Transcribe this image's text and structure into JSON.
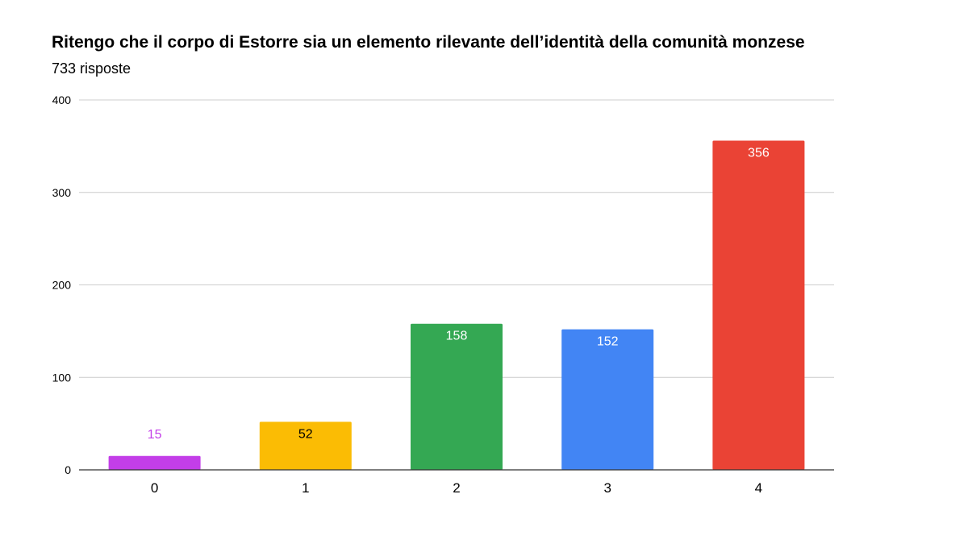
{
  "chart_data": {
    "type": "bar",
    "title": "Ritengo che il corpo di Estorre sia un elemento rilevante dell’identità della comunità monzese",
    "subtitle": "733 risposte",
    "xlabel": "",
    "ylabel": "",
    "categories": [
      "0",
      "1",
      "2",
      "3",
      "4"
    ],
    "values": [
      15,
      52,
      158,
      152,
      356
    ],
    "ylim": [
      0,
      400
    ],
    "yticks": [
      0,
      100,
      200,
      300,
      400
    ],
    "grid": true,
    "legend": "none",
    "bar_colors": [
      "#c33ee8",
      "#fbbc04",
      "#34a853",
      "#4285f4",
      "#ea4335"
    ],
    "value_label_colors": [
      "#c33ee8",
      "#000000",
      "#ffffff",
      "#ffffff",
      "#ffffff"
    ]
  }
}
